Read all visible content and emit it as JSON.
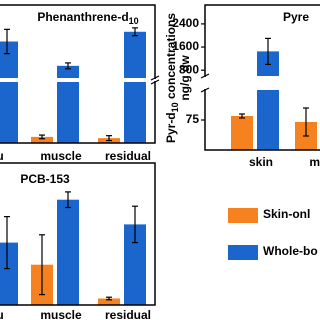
{
  "legend": [
    {
      "label": "Skin-onl",
      "color": "#f5821f"
    },
    {
      "label": "Whole-bo",
      "color": "#1a66cc"
    }
  ],
  "chart_data": [
    {
      "type": "bar",
      "title": "Phenanthrene-d",
      "title_sub": "10",
      "categories": [
        "u",
        "muscle",
        "residual"
      ],
      "series": [
        {
          "color": "#f5821f",
          "values": [
            null,
            1,
            0.8
          ],
          "errors": [
            null,
            0.3,
            0.4
          ]
        },
        {
          "color": "#1a66cc",
          "values": [
            25,
            15,
            29
          ],
          "errors": [
            5,
            1.2,
            1.6
          ]
        }
      ],
      "ylim": [
        0,
        10
      ],
      "ylim_upper": [
        10,
        40
      ],
      "axis_break": true
    },
    {
      "type": "bar",
      "title": "Pyre",
      "ylabel": "Pyr-d",
      "ylabel_sub": "10",
      "ylabel_rest": " concentrations",
      "ylabel_line2": "ng/g dw",
      "categories": [
        "skin",
        "musc"
      ],
      "series": [
        {
          "color": "#f5821f",
          "values": [
            85,
            70
          ],
          "errors": [
            5,
            35
          ]
        },
        {
          "color": "#1a66cc",
          "values": [
            1450,
            null
          ],
          "errors": [
            450,
            null
          ]
        }
      ],
      "ylim": [
        0,
        150
      ],
      "yticks": [
        75
      ],
      "ylim_upper": [
        600,
        2500
      ],
      "yticks_upper": [
        800,
        1600,
        2400
      ],
      "axis_break": true
    },
    {
      "type": "bar",
      "title": "PCB-153",
      "categories": [
        "u",
        "muscle",
        "residual"
      ],
      "series": [
        {
          "color": "#f5821f",
          "values": [
            null,
            3.1,
            0.5
          ],
          "errors": [
            null,
            2.3,
            0.1
          ]
        },
        {
          "color": "#1a66cc",
          "values": [
            4.8,
            8.1,
            6.2
          ],
          "errors": [
            2,
            0.6,
            1.4
          ]
        }
      ],
      "ylim": [
        0,
        10
      ]
    }
  ]
}
